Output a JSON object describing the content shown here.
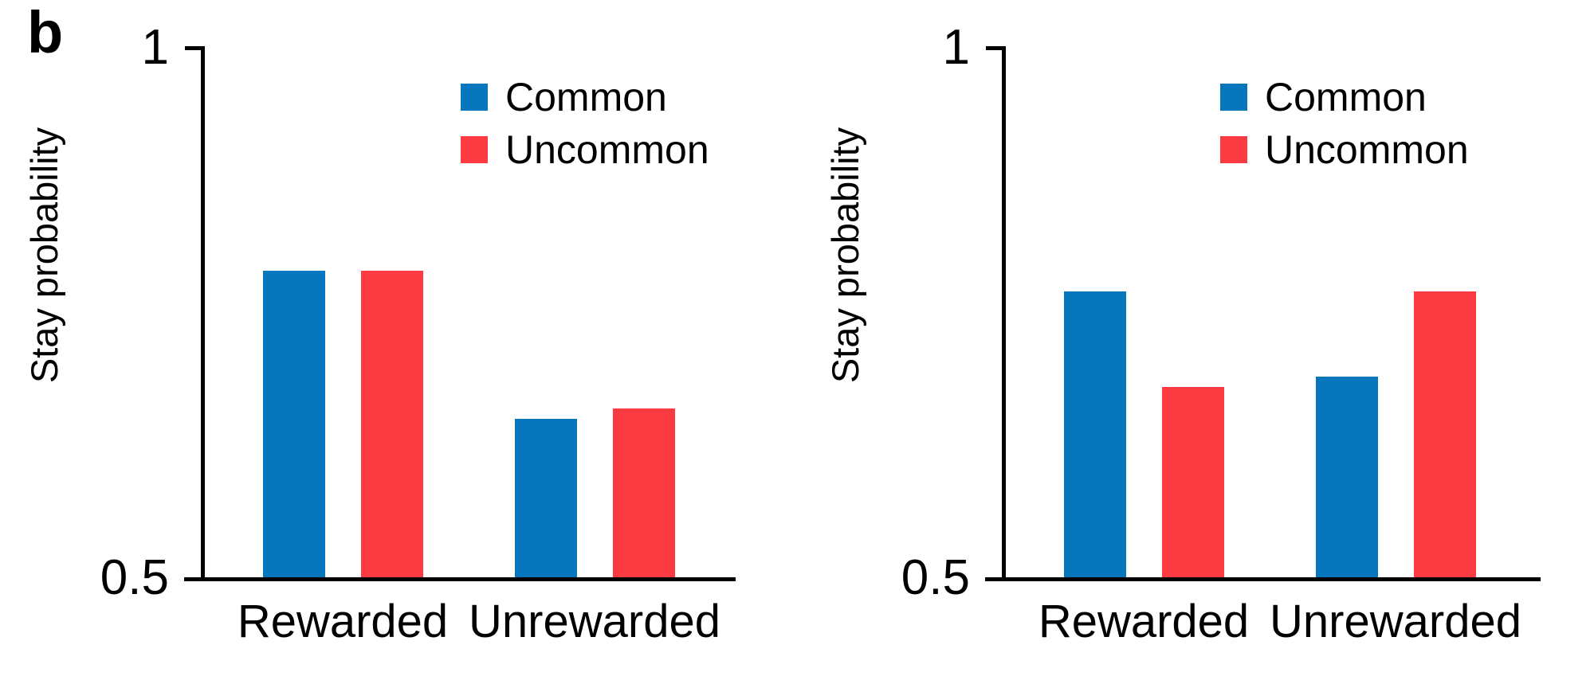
{
  "panel_label": "b",
  "chart_data": [
    {
      "type": "bar",
      "name": "left-panel",
      "categories": [
        "Rewarded",
        "Unrewarded"
      ],
      "series": [
        {
          "name": "Common",
          "color": "#0777bd",
          "values": [
            0.79,
            0.65
          ]
        },
        {
          "name": "Uncommon",
          "color": "#fc3a42",
          "values": [
            0.79,
            0.66
          ]
        }
      ],
      "ylabel": "Stay probability",
      "xlabel": "",
      "ylim": [
        0.5,
        1
      ],
      "yticks": [
        0.5,
        1
      ],
      "ytick_labels": [
        "0.5",
        "1"
      ],
      "grid": false,
      "legend_position": "top-right-inside"
    },
    {
      "type": "bar",
      "name": "right-panel",
      "categories": [
        "Rewarded",
        "Unrewarded"
      ],
      "series": [
        {
          "name": "Common",
          "color": "#0777bd",
          "values": [
            0.77,
            0.69
          ]
        },
        {
          "name": "Uncommon",
          "color": "#fc3a42",
          "values": [
            0.68,
            0.77
          ]
        }
      ],
      "ylabel": "Stay probability",
      "xlabel": "",
      "ylim": [
        0.5,
        1
      ],
      "yticks": [
        0.5,
        1
      ],
      "ytick_labels": [
        "0.5",
        "1"
      ],
      "grid": false,
      "legend_position": "top-right-inside"
    }
  ]
}
